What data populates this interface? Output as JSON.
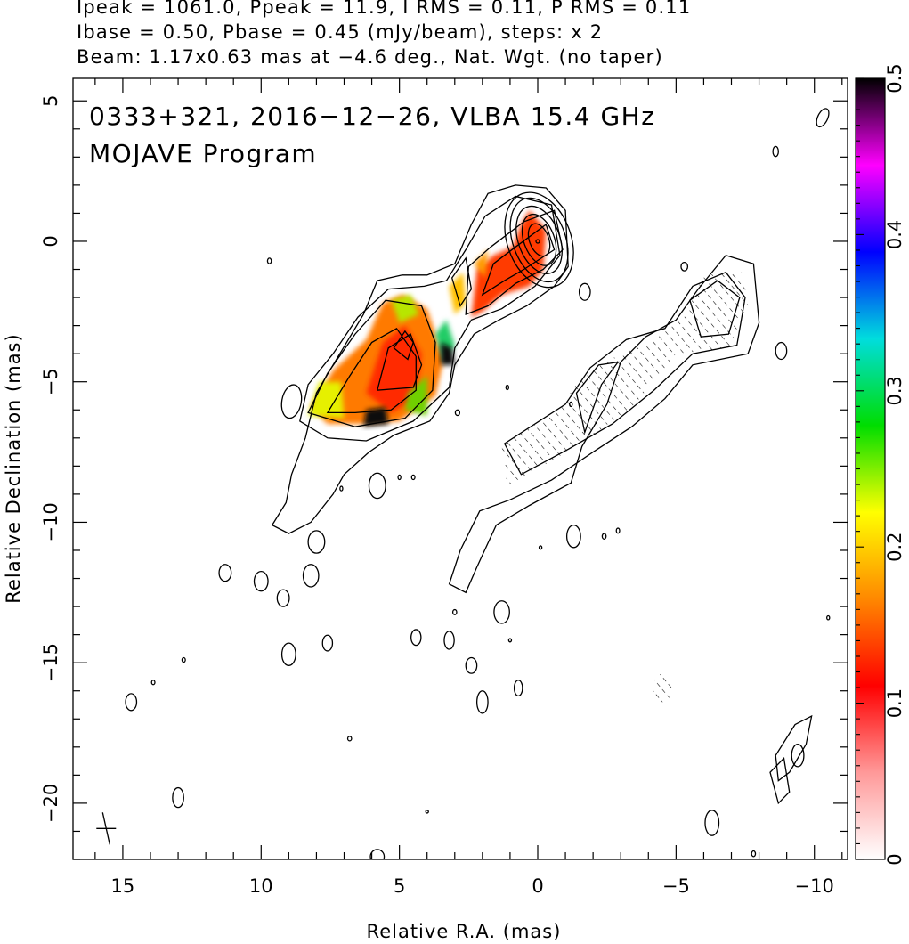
{
  "header": {
    "line1": "Ipeak = 1061.0, Ppeak = 11.9, I RMS = 0.11, P RMS = 0.11",
    "line2": "Ibase = 0.50, Pbase = 0.45 (mJy/beam), steps: x 2",
    "line3": "Beam: 1.17x0.63 mas at −4.6 deg., Nat. Wgt. (no taper)"
  },
  "annotation": {
    "line1": "0333+321, 2016−12−26, VLBA 15.4 GHz",
    "line2": "MOJAVE Program"
  },
  "chart_data": {
    "type": "contour",
    "xlabel": "Relative R.A. (mas)",
    "ylabel": "Relative Declination (mas)",
    "xlim": [
      16.8,
      -11.2
    ],
    "ylim": [
      -22,
      5.8
    ],
    "x_ticks": [
      15,
      10,
      5,
      0,
      -5,
      -10
    ],
    "x_tick_labels": [
      "15",
      "10",
      "5",
      "0",
      "−5",
      "−10"
    ],
    "y_ticks": [
      5,
      0,
      -5,
      -10,
      -15,
      -20
    ],
    "y_tick_labels": [
      "5",
      "0",
      "−5",
      "−10",
      "−15",
      "−20"
    ],
    "colorbar": {
      "min": 0,
      "max": 0.5,
      "ticks": [
        0,
        0.1,
        0.2,
        0.3,
        0.4,
        0.5
      ],
      "tick_labels": [
        "0",
        "0.1",
        "0.2",
        "0.3",
        "0.4",
        "0.5"
      ],
      "stops": [
        "#ffffff",
        "#ff9999",
        "#ff0000",
        "#ff8800",
        "#ffff00",
        "#00dd00",
        "#00dddd",
        "#0000ff",
        "#ff00ff",
        "#000000"
      ]
    },
    "intensity_peak_mJy_per_beam": 1061.0,
    "polarization_peak_mJy_per_beam": 11.9,
    "contour_base_mJy_per_beam": 0.5,
    "contour_step_factor": 2,
    "core_position": [
      0,
      0
    ],
    "beam": {
      "major_mas": 1.17,
      "minor_mas": 0.63,
      "pa_deg": -4.6
    },
    "grid": false
  }
}
